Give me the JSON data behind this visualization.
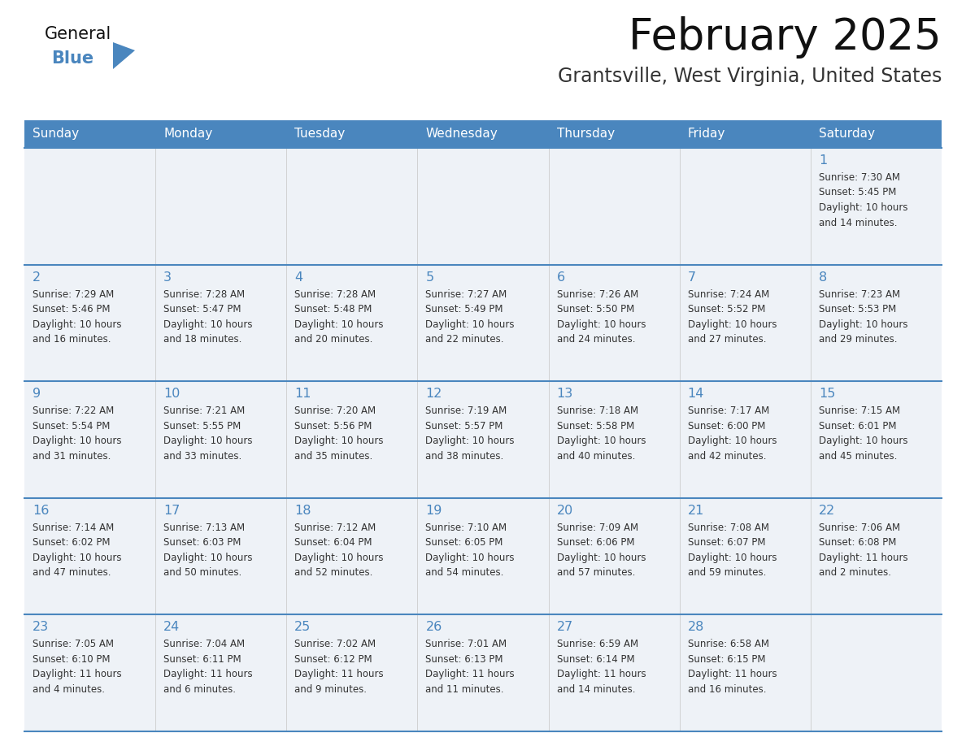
{
  "title": "February 2025",
  "subtitle": "Grantsville, West Virginia, United States",
  "days_of_week": [
    "Sunday",
    "Monday",
    "Tuesday",
    "Wednesday",
    "Thursday",
    "Friday",
    "Saturday"
  ],
  "header_bg": "#4a86be",
  "header_text": "#ffffff",
  "cell_bg": "#eef2f7",
  "border_color": "#4a86be",
  "row_sep_color": "#4a86be",
  "day_num_color": "#4a86be",
  "text_color": "#333333",
  "title_color": "#111111",
  "subtitle_color": "#333333",
  "logo_general_color": "#111111",
  "logo_blue_color": "#4a86be",
  "weeks": [
    [
      {
        "day": null,
        "info": null
      },
      {
        "day": null,
        "info": null
      },
      {
        "day": null,
        "info": null
      },
      {
        "day": null,
        "info": null
      },
      {
        "day": null,
        "info": null
      },
      {
        "day": null,
        "info": null
      },
      {
        "day": 1,
        "info": "Sunrise: 7:30 AM\nSunset: 5:45 PM\nDaylight: 10 hours\nand 14 minutes."
      }
    ],
    [
      {
        "day": 2,
        "info": "Sunrise: 7:29 AM\nSunset: 5:46 PM\nDaylight: 10 hours\nand 16 minutes."
      },
      {
        "day": 3,
        "info": "Sunrise: 7:28 AM\nSunset: 5:47 PM\nDaylight: 10 hours\nand 18 minutes."
      },
      {
        "day": 4,
        "info": "Sunrise: 7:28 AM\nSunset: 5:48 PM\nDaylight: 10 hours\nand 20 minutes."
      },
      {
        "day": 5,
        "info": "Sunrise: 7:27 AM\nSunset: 5:49 PM\nDaylight: 10 hours\nand 22 minutes."
      },
      {
        "day": 6,
        "info": "Sunrise: 7:26 AM\nSunset: 5:50 PM\nDaylight: 10 hours\nand 24 minutes."
      },
      {
        "day": 7,
        "info": "Sunrise: 7:24 AM\nSunset: 5:52 PM\nDaylight: 10 hours\nand 27 minutes."
      },
      {
        "day": 8,
        "info": "Sunrise: 7:23 AM\nSunset: 5:53 PM\nDaylight: 10 hours\nand 29 minutes."
      }
    ],
    [
      {
        "day": 9,
        "info": "Sunrise: 7:22 AM\nSunset: 5:54 PM\nDaylight: 10 hours\nand 31 minutes."
      },
      {
        "day": 10,
        "info": "Sunrise: 7:21 AM\nSunset: 5:55 PM\nDaylight: 10 hours\nand 33 minutes."
      },
      {
        "day": 11,
        "info": "Sunrise: 7:20 AM\nSunset: 5:56 PM\nDaylight: 10 hours\nand 35 minutes."
      },
      {
        "day": 12,
        "info": "Sunrise: 7:19 AM\nSunset: 5:57 PM\nDaylight: 10 hours\nand 38 minutes."
      },
      {
        "day": 13,
        "info": "Sunrise: 7:18 AM\nSunset: 5:58 PM\nDaylight: 10 hours\nand 40 minutes."
      },
      {
        "day": 14,
        "info": "Sunrise: 7:17 AM\nSunset: 6:00 PM\nDaylight: 10 hours\nand 42 minutes."
      },
      {
        "day": 15,
        "info": "Sunrise: 7:15 AM\nSunset: 6:01 PM\nDaylight: 10 hours\nand 45 minutes."
      }
    ],
    [
      {
        "day": 16,
        "info": "Sunrise: 7:14 AM\nSunset: 6:02 PM\nDaylight: 10 hours\nand 47 minutes."
      },
      {
        "day": 17,
        "info": "Sunrise: 7:13 AM\nSunset: 6:03 PM\nDaylight: 10 hours\nand 50 minutes."
      },
      {
        "day": 18,
        "info": "Sunrise: 7:12 AM\nSunset: 6:04 PM\nDaylight: 10 hours\nand 52 minutes."
      },
      {
        "day": 19,
        "info": "Sunrise: 7:10 AM\nSunset: 6:05 PM\nDaylight: 10 hours\nand 54 minutes."
      },
      {
        "day": 20,
        "info": "Sunrise: 7:09 AM\nSunset: 6:06 PM\nDaylight: 10 hours\nand 57 minutes."
      },
      {
        "day": 21,
        "info": "Sunrise: 7:08 AM\nSunset: 6:07 PM\nDaylight: 10 hours\nand 59 minutes."
      },
      {
        "day": 22,
        "info": "Sunrise: 7:06 AM\nSunset: 6:08 PM\nDaylight: 11 hours\nand 2 minutes."
      }
    ],
    [
      {
        "day": 23,
        "info": "Sunrise: 7:05 AM\nSunset: 6:10 PM\nDaylight: 11 hours\nand 4 minutes."
      },
      {
        "day": 24,
        "info": "Sunrise: 7:04 AM\nSunset: 6:11 PM\nDaylight: 11 hours\nand 6 minutes."
      },
      {
        "day": 25,
        "info": "Sunrise: 7:02 AM\nSunset: 6:12 PM\nDaylight: 11 hours\nand 9 minutes."
      },
      {
        "day": 26,
        "info": "Sunrise: 7:01 AM\nSunset: 6:13 PM\nDaylight: 11 hours\nand 11 minutes."
      },
      {
        "day": 27,
        "info": "Sunrise: 6:59 AM\nSunset: 6:14 PM\nDaylight: 11 hours\nand 14 minutes."
      },
      {
        "day": 28,
        "info": "Sunrise: 6:58 AM\nSunset: 6:15 PM\nDaylight: 11 hours\nand 16 minutes."
      },
      {
        "day": null,
        "info": null
      }
    ]
  ]
}
